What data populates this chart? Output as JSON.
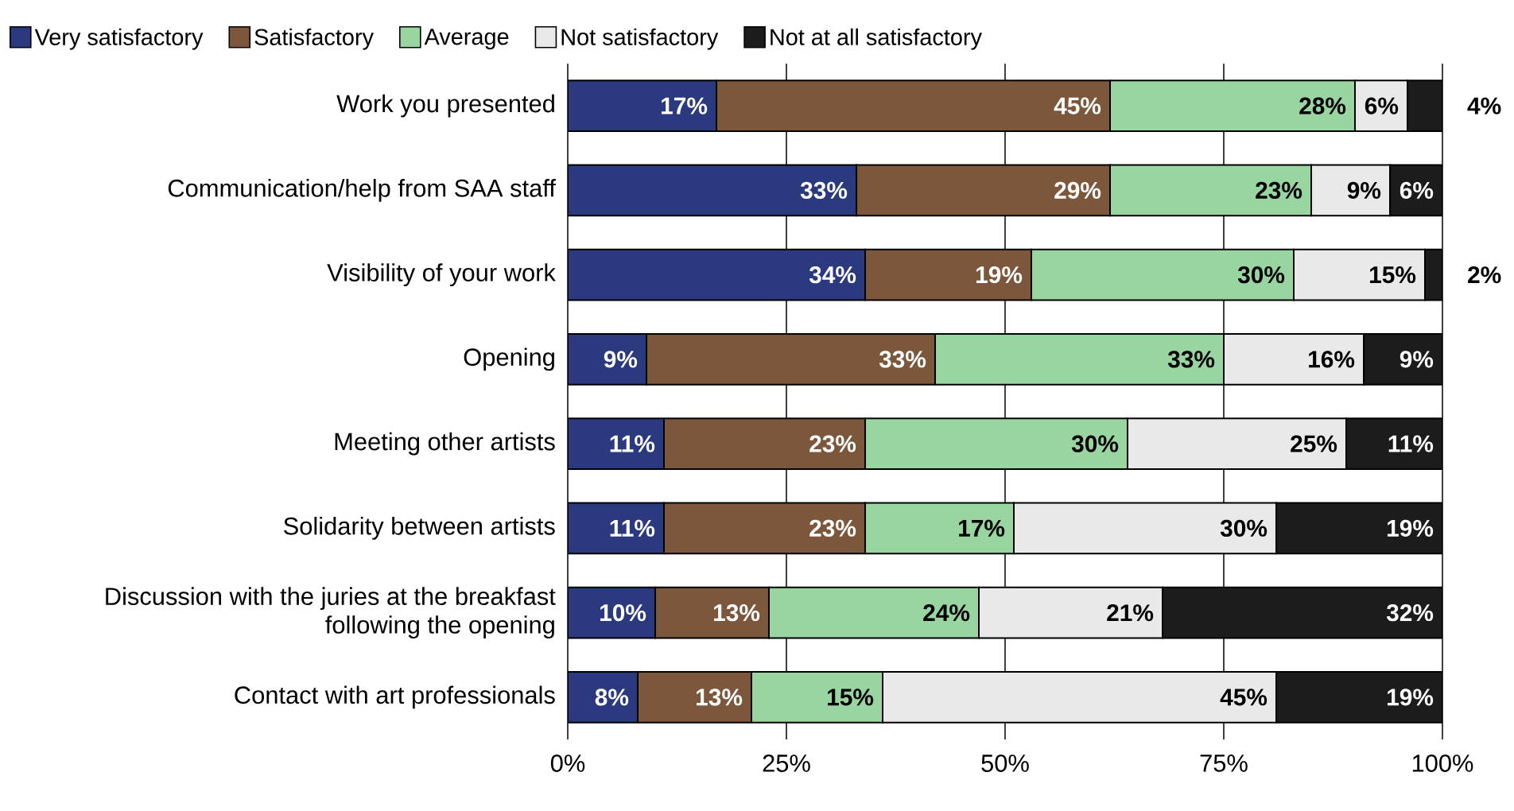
{
  "chart_data": {
    "type": "bar",
    "orientation": "horizontal",
    "stacked": true,
    "categories": [
      "Work you presented",
      "Communication/help from SAA staff",
      "Visibility of your work",
      "Opening",
      "Meeting other artists",
      "Solidarity between artists",
      "Discussion with the juries at the breakfast following the opening",
      "Contact with art professionals"
    ],
    "series": [
      {
        "name": "Very satisfactory",
        "color": "#2b3a7e",
        "values": [
          17,
          33,
          34,
          9,
          11,
          11,
          10,
          8
        ],
        "value_labels": [
          "17%",
          "33%",
          "34%",
          "9%",
          "11%",
          "11%",
          "10%",
          "8%"
        ]
      },
      {
        "name": "Satisfactory",
        "color": "#7d573b",
        "values": [
          45,
          29,
          19,
          33,
          23,
          23,
          13,
          13
        ],
        "value_labels": [
          "45%",
          "29%",
          "19%",
          "33%",
          "23%",
          "23%",
          "13%",
          "13%"
        ]
      },
      {
        "name": "Average",
        "color": "#99d5a0",
        "values": [
          28,
          23,
          30,
          33,
          30,
          17,
          24,
          15
        ],
        "value_labels": [
          "28%",
          "23%",
          "30%",
          "33%",
          "30%",
          "17%",
          "24%",
          "15%"
        ]
      },
      {
        "name": "Not satisfactory",
        "color": "#e8e9e8",
        "values": [
          6,
          9,
          15,
          16,
          25,
          30,
          21,
          45
        ],
        "value_labels": [
          "6%",
          "9%",
          "15%",
          "16%",
          "25%",
          "30%",
          "21%",
          "45%"
        ]
      },
      {
        "name": "Not at all satisfactory",
        "color": "#1c1c1c",
        "values": [
          4,
          6,
          2,
          9,
          11,
          19,
          32,
          19
        ],
        "value_labels": [
          "4%",
          "6%",
          "2%",
          "9%",
          "11%",
          "19%",
          "32%",
          "19%"
        ]
      }
    ],
    "xlim": [
      0,
      100
    ],
    "xticks": [
      {
        "value": 0,
        "label": "0%"
      },
      {
        "value": 25,
        "label": "25%"
      },
      {
        "value": 50,
        "label": "50%"
      },
      {
        "value": 75,
        "label": "75%"
      },
      {
        "value": 100,
        "label": "100%"
      }
    ],
    "grid": "x",
    "legend": "top"
  }
}
